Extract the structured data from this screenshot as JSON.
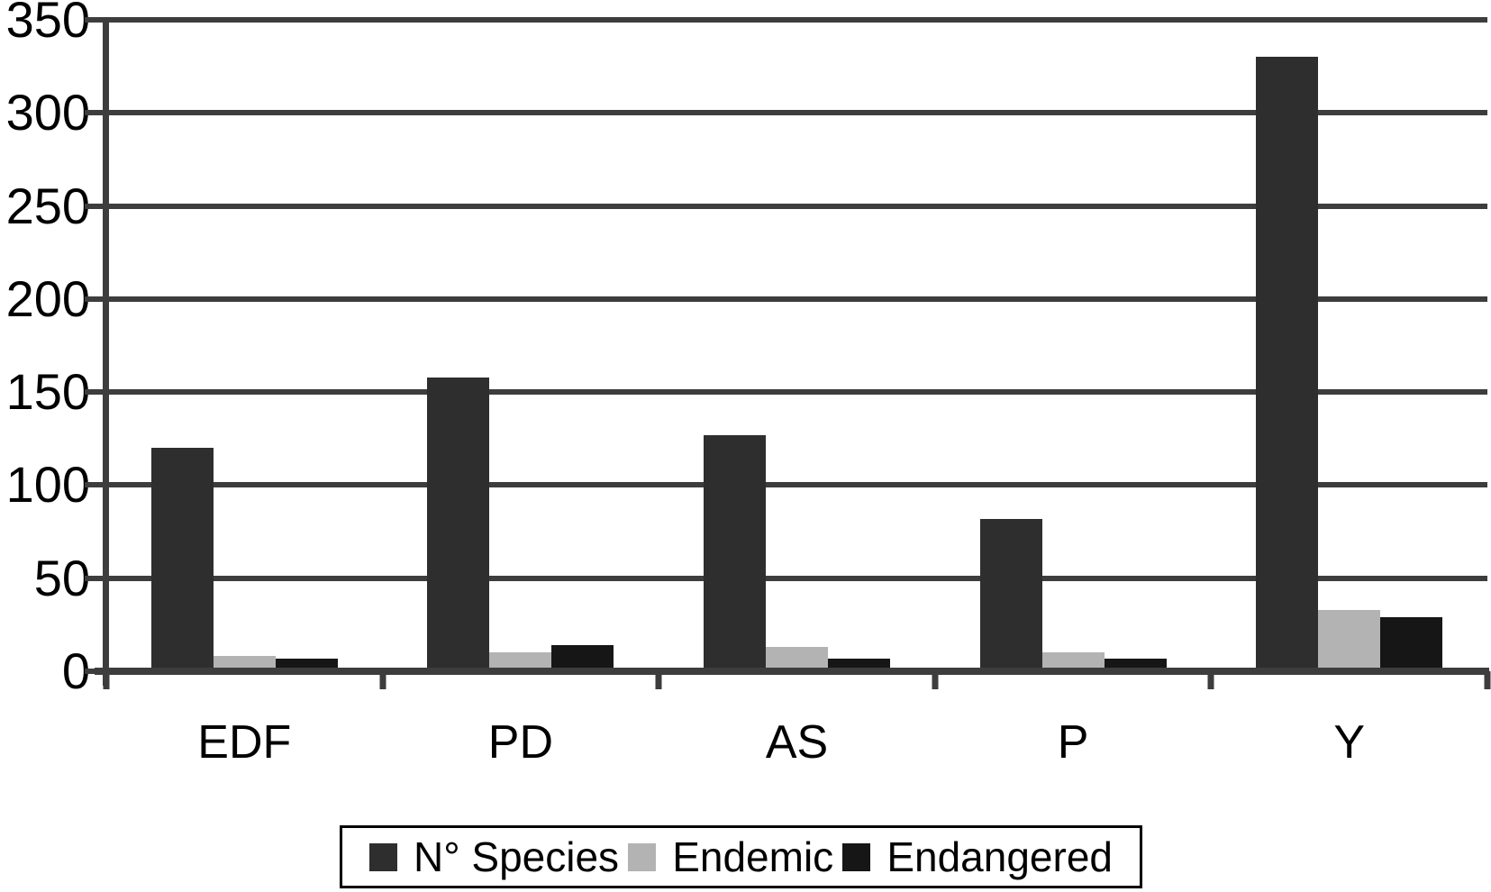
{
  "chart_data": {
    "type": "bar",
    "title": "",
    "xlabel": "",
    "ylabel": "",
    "categories": [
      "EDF",
      "PD",
      "AS",
      "P",
      "Y"
    ],
    "series": [
      {
        "name": "N° Species",
        "color": "#2e2e2e",
        "values": [
          120,
          158,
          127,
          82,
          330
        ]
      },
      {
        "name": "Endemic",
        "color": "#b3b3b3",
        "values": [
          8,
          10,
          13,
          10,
          33
        ]
      },
      {
        "name": "Endangered",
        "color": "#161616",
        "values": [
          7,
          14,
          7,
          7,
          29
        ]
      }
    ],
    "ylim": [
      0,
      350
    ],
    "yticks": [
      0,
      50,
      100,
      150,
      200,
      250,
      300,
      350
    ],
    "grid": true,
    "legend_position": "bottom"
  },
  "colors": {
    "axis": "#3d3d3d",
    "background": "#ffffff",
    "text": "#000000"
  }
}
